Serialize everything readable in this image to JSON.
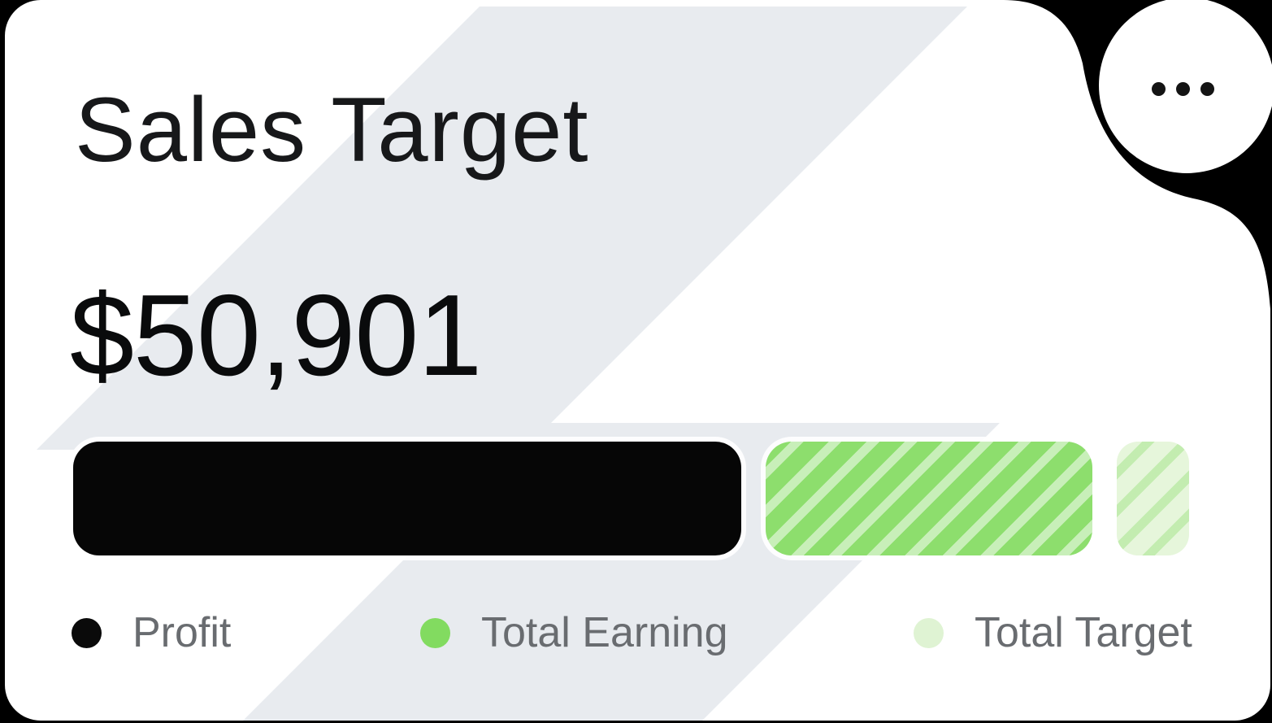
{
  "card": {
    "title": "Sales Target",
    "amount": "$50,901"
  },
  "menu": {
    "icon": "ellipsis-horizontal",
    "label": "More options"
  },
  "colors": {
    "card_background": "#FFFFFF",
    "background_band": "#E8EBEF",
    "title_text": "#17181A",
    "amount_text": "#0A0B0C",
    "legend_text": "#696C70"
  },
  "chart_data": {
    "type": "bar",
    "title": "Sales Target",
    "value_label": "$50,901",
    "orientation": "horizontal-stacked-progress",
    "segments": [
      {
        "label": "Profit",
        "percent": 59.8,
        "color": "#060606",
        "pattern": "none"
      },
      {
        "label": "Total Earning",
        "percent": 29.2,
        "color": "#8DDE6D",
        "pattern": "white-diagonal-stripes"
      },
      {
        "label": "Total Target",
        "percent": 6.5,
        "color": "#E6F6DB",
        "pattern": "green-diagonal-stripes"
      }
    ],
    "legend": [
      {
        "label": "Profit",
        "color": "#0A0A0A"
      },
      {
        "label": "Total Earning",
        "color": "#82DB60"
      },
      {
        "label": "Total Target",
        "color": "#DFF3D3"
      }
    ],
    "legend_position": "bottom"
  }
}
